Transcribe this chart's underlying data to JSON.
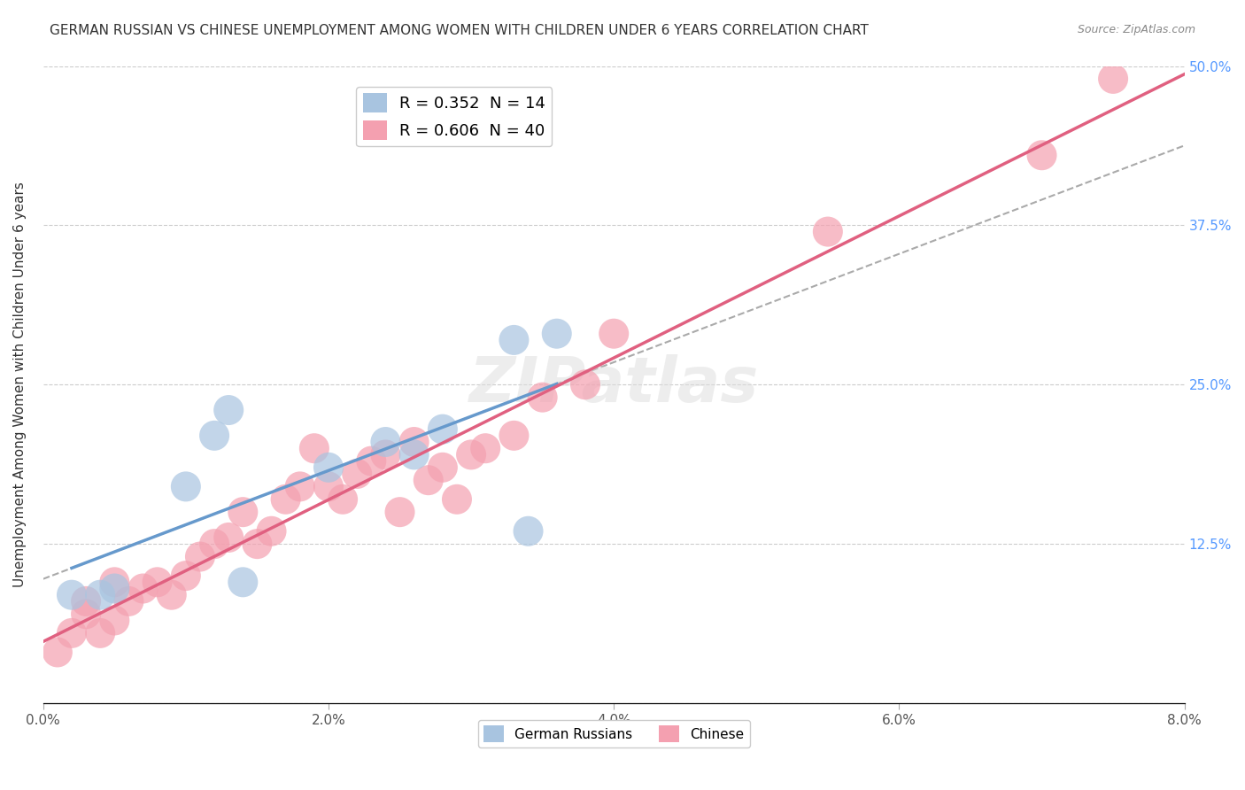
{
  "title": "GERMAN RUSSIAN VS CHINESE UNEMPLOYMENT AMONG WOMEN WITH CHILDREN UNDER 6 YEARS CORRELATION CHART",
  "source": "Source: ZipAtlas.com",
  "xlabel": "",
  "ylabel": "Unemployment Among Women with Children Under 6 years",
  "xlim": [
    0.0,
    0.08
  ],
  "ylim": [
    0.0,
    0.5
  ],
  "xticks": [
    0.0,
    0.02,
    0.04,
    0.06,
    0.08
  ],
  "xticklabels": [
    "0.0%",
    "2.0%",
    "4.0%",
    "6.0%",
    "8.0%"
  ],
  "yticks": [
    0.0,
    0.125,
    0.25,
    0.375,
    0.5
  ],
  "yticklabels": [
    "0%",
    "12.5%",
    "25.0%",
    "37.5%",
    "50.0%"
  ],
  "german_russian_R": 0.352,
  "german_russian_N": 14,
  "chinese_R": 0.606,
  "chinese_N": 40,
  "german_russian_color": "#a8c4e0",
  "chinese_color": "#f4a0b0",
  "german_russian_line_color": "#6699cc",
  "chinese_line_color": "#e06080",
  "watermark": "ZIPatlas",
  "background_color": "#ffffff",
  "german_russian_x": [
    0.002,
    0.004,
    0.005,
    0.01,
    0.012,
    0.013,
    0.014,
    0.02,
    0.024,
    0.026,
    0.028,
    0.033,
    0.034,
    0.036
  ],
  "german_russian_y": [
    0.085,
    0.085,
    0.09,
    0.17,
    0.21,
    0.23,
    0.095,
    0.185,
    0.205,
    0.195,
    0.215,
    0.285,
    0.135,
    0.29
  ],
  "chinese_x": [
    0.001,
    0.002,
    0.003,
    0.003,
    0.004,
    0.005,
    0.005,
    0.006,
    0.007,
    0.008,
    0.009,
    0.01,
    0.011,
    0.012,
    0.013,
    0.014,
    0.015,
    0.016,
    0.017,
    0.018,
    0.019,
    0.02,
    0.021,
    0.022,
    0.023,
    0.024,
    0.025,
    0.026,
    0.027,
    0.028,
    0.029,
    0.03,
    0.031,
    0.033,
    0.035,
    0.038,
    0.04,
    0.055,
    0.07,
    0.075
  ],
  "chinese_y": [
    0.04,
    0.055,
    0.07,
    0.08,
    0.055,
    0.065,
    0.095,
    0.08,
    0.09,
    0.095,
    0.085,
    0.1,
    0.115,
    0.125,
    0.13,
    0.15,
    0.125,
    0.135,
    0.16,
    0.17,
    0.2,
    0.17,
    0.16,
    0.18,
    0.19,
    0.195,
    0.15,
    0.205,
    0.175,
    0.185,
    0.16,
    0.195,
    0.2,
    0.21,
    0.24,
    0.25,
    0.29,
    0.37,
    0.43,
    0.49
  ]
}
